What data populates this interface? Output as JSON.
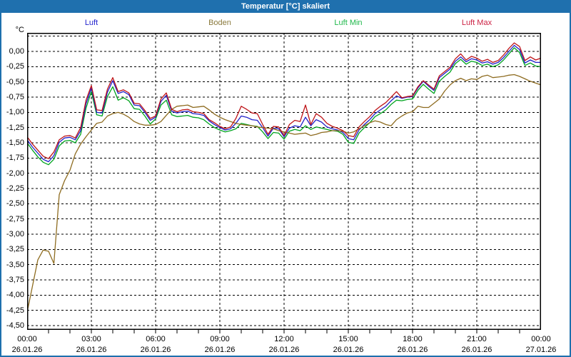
{
  "window": {
    "title": "Temperatur [°C] skaliert",
    "titlebar_color": "#1F70AE",
    "frame_color": "#1E70AD",
    "background_color": "#FFFFFF"
  },
  "legend": [
    {
      "label": "Luft",
      "color": "#2222CC"
    },
    {
      "label": "Boden",
      "color": "#8A7A3D"
    },
    {
      "label": "Luft Min",
      "color": "#1FB84B"
    },
    {
      "label": "Luft Max",
      "color": "#CC2244"
    }
  ],
  "chart_data": {
    "type": "line",
    "title": "Temperatur [°C] skaliert",
    "xlabel": "",
    "ylabel": "°C",
    "ylim": [
      -4.57,
      0.305
    ],
    "grid": "dashed",
    "legend_position": "top",
    "x_step_hours": 0.25,
    "x_range_hours": [
      0,
      24
    ],
    "yticks": [
      {
        "v": 0.25,
        "label": ""
      },
      {
        "v": 0.0,
        "label": "0,00"
      },
      {
        "v": -0.25,
        "label": "-0,25"
      },
      {
        "v": -0.5,
        "label": "-0,50"
      },
      {
        "v": -0.75,
        "label": "-0,75"
      },
      {
        "v": -1.0,
        "label": "-1,00"
      },
      {
        "v": -1.25,
        "label": "-1,25"
      },
      {
        "v": -1.5,
        "label": "-1,50"
      },
      {
        "v": -1.75,
        "label": "-1,75"
      },
      {
        "v": -2.0,
        "label": "-2,00"
      },
      {
        "v": -2.25,
        "label": "-2,25"
      },
      {
        "v": -2.5,
        "label": "-2,50"
      },
      {
        "v": -2.75,
        "label": "-2,75"
      },
      {
        "v": -3.0,
        "label": "-3,00"
      },
      {
        "v": -3.25,
        "label": "-3,25"
      },
      {
        "v": -3.5,
        "label": "-3,50"
      },
      {
        "v": -3.75,
        "label": "-3,75"
      },
      {
        "v": -4.0,
        "label": "-4,00"
      },
      {
        "v": -4.25,
        "label": "-4,25"
      },
      {
        "v": -4.5,
        "label": "-4,50"
      }
    ],
    "xticks": [
      {
        "hour": 0,
        "time": "00:00",
        "date": "26.01.26"
      },
      {
        "hour": 3,
        "time": "03:00",
        "date": "26.01.26"
      },
      {
        "hour": 6,
        "time": "06:00",
        "date": "26.01.26"
      },
      {
        "hour": 9,
        "time": "09:00",
        "date": "26.01.26"
      },
      {
        "hour": 12,
        "time": "12:00",
        "date": "26.01.26"
      },
      {
        "hour": 15,
        "time": "15:00",
        "date": "26.01.26"
      },
      {
        "hour": 18,
        "time": "18:00",
        "date": "26.01.26"
      },
      {
        "hour": 21,
        "time": "21:00",
        "date": "26.01.26"
      },
      {
        "hour": 24,
        "time": "00:00",
        "date": "27.01.26"
      }
    ],
    "series": [
      {
        "name": "Luft Min",
        "color": "#00A41E",
        "values": [
          -1.5,
          -1.62,
          -1.73,
          -1.82,
          -1.86,
          -1.77,
          -1.55,
          -1.47,
          -1.46,
          -1.5,
          -1.36,
          -0.93,
          -0.66,
          -1.04,
          -1.06,
          -0.74,
          -0.58,
          -0.8,
          -0.76,
          -0.81,
          -0.94,
          -0.95,
          -1.06,
          -1.19,
          -1.11,
          -0.88,
          -0.8,
          -1.04,
          -1.07,
          -1.06,
          -1.05,
          -1.08,
          -1.09,
          -1.12,
          -1.19,
          -1.25,
          -1.29,
          -1.32,
          -1.3,
          -1.27,
          -1.18,
          -1.2,
          -1.22,
          -1.23,
          -1.32,
          -1.43,
          -1.33,
          -1.34,
          -1.44,
          -1.31,
          -1.28,
          -1.3,
          -1.22,
          -1.28,
          -1.24,
          -1.26,
          -1.28,
          -1.3,
          -1.31,
          -1.36,
          -1.49,
          -1.51,
          -1.34,
          -1.25,
          -1.17,
          -1.07,
          -1.02,
          -0.96,
          -0.87,
          -0.8,
          -0.81,
          -0.79,
          -0.78,
          -0.64,
          -0.54,
          -0.62,
          -0.69,
          -0.49,
          -0.41,
          -0.34,
          -0.2,
          -0.13,
          -0.21,
          -0.16,
          -0.18,
          -0.23,
          -0.21,
          -0.25,
          -0.22,
          -0.14,
          -0.04,
          0.06,
          -0.02,
          -0.23,
          -0.19,
          -0.24,
          -0.25
        ]
      },
      {
        "name": "Luft",
        "color": "#2020C8",
        "values": [
          -1.45,
          -1.57,
          -1.67,
          -1.77,
          -1.81,
          -1.71,
          -1.49,
          -1.42,
          -1.41,
          -1.45,
          -1.3,
          -0.86,
          -0.6,
          -1.0,
          -1.01,
          -0.67,
          -0.48,
          -0.69,
          -0.66,
          -0.71,
          -0.88,
          -0.89,
          -1.0,
          -1.13,
          -1.08,
          -0.82,
          -0.72,
          -0.98,
          -1.01,
          -0.99,
          -0.98,
          -1.02,
          -1.03,
          -1.05,
          -1.14,
          -1.2,
          -1.25,
          -1.29,
          -1.27,
          -1.18,
          -1.06,
          -1.08,
          -1.12,
          -1.13,
          -1.25,
          -1.39,
          -1.26,
          -1.27,
          -1.4,
          -1.26,
          -1.22,
          -1.24,
          -1.08,
          -1.22,
          -1.12,
          -1.16,
          -1.24,
          -1.27,
          -1.29,
          -1.33,
          -1.43,
          -1.45,
          -1.29,
          -1.2,
          -1.12,
          -1.02,
          -0.96,
          -0.9,
          -0.81,
          -0.73,
          -0.77,
          -0.75,
          -0.74,
          -0.6,
          -0.49,
          -0.57,
          -0.64,
          -0.43,
          -0.36,
          -0.29,
          -0.16,
          -0.09,
          -0.17,
          -0.12,
          -0.14,
          -0.19,
          -0.17,
          -0.21,
          -0.18,
          -0.1,
          0.0,
          0.1,
          0.03,
          -0.19,
          -0.14,
          -0.18,
          -0.18
        ]
      },
      {
        "name": "Boden",
        "color": "#8E6C20",
        "values": [
          -4.28,
          -3.85,
          -3.42,
          -3.26,
          -3.28,
          -3.48,
          -2.35,
          -2.12,
          -1.95,
          -1.68,
          -1.52,
          -1.4,
          -1.29,
          -1.18,
          -1.16,
          -1.06,
          -1.02,
          -1.0,
          -1.03,
          -1.08,
          -1.15,
          -1.19,
          -1.21,
          -1.21,
          -1.2,
          -1.15,
          -1.05,
          -0.95,
          -0.9,
          -0.89,
          -0.88,
          -0.92,
          -0.91,
          -0.9,
          -0.96,
          -1.03,
          -1.08,
          -1.12,
          -1.15,
          -1.18,
          -1.2,
          -1.21,
          -1.22,
          -1.24,
          -1.25,
          -1.26,
          -1.27,
          -1.3,
          -1.32,
          -1.34,
          -1.36,
          -1.35,
          -1.34,
          -1.38,
          -1.36,
          -1.33,
          -1.32,
          -1.3,
          -1.3,
          -1.31,
          -1.34,
          -1.32,
          -1.27,
          -1.22,
          -1.17,
          -1.14,
          -1.16,
          -1.2,
          -1.22,
          -1.12,
          -1.06,
          -1.01,
          -0.99,
          -0.9,
          -0.92,
          -0.92,
          -0.85,
          -0.78,
          -0.65,
          -0.55,
          -0.48,
          -0.44,
          -0.48,
          -0.45,
          -0.46,
          -0.41,
          -0.39,
          -0.43,
          -0.42,
          -0.41,
          -0.39,
          -0.38,
          -0.41,
          -0.45,
          -0.49,
          -0.52,
          -0.55
        ]
      },
      {
        "name": "Luft Max",
        "color": "#BE1418",
        "values": [
          -1.4,
          -1.52,
          -1.62,
          -1.72,
          -1.76,
          -1.65,
          -1.45,
          -1.39,
          -1.38,
          -1.42,
          -1.25,
          -0.8,
          -0.56,
          -0.96,
          -0.97,
          -0.62,
          -0.43,
          -0.66,
          -0.63,
          -0.68,
          -0.85,
          -0.86,
          -0.97,
          -1.1,
          -1.06,
          -0.78,
          -0.68,
          -0.95,
          -0.99,
          -0.96,
          -0.95,
          -0.99,
          -1.0,
          -1.02,
          -1.12,
          -1.17,
          -1.23,
          -1.27,
          -1.24,
          -1.1,
          -0.9,
          -0.95,
          -1.01,
          -1.02,
          -1.2,
          -1.36,
          -1.23,
          -1.24,
          -1.38,
          -1.2,
          -1.13,
          -1.15,
          -0.88,
          -1.2,
          -1.02,
          -1.08,
          -1.18,
          -1.23,
          -1.26,
          -1.3,
          -1.38,
          -1.4,
          -1.24,
          -1.15,
          -1.07,
          -0.97,
          -0.9,
          -0.84,
          -0.75,
          -0.66,
          -0.76,
          -0.74,
          -0.73,
          -0.58,
          -0.48,
          -0.55,
          -0.62,
          -0.4,
          -0.33,
          -0.26,
          -0.12,
          -0.04,
          -0.14,
          -0.08,
          -0.11,
          -0.16,
          -0.13,
          -0.18,
          -0.15,
          -0.06,
          0.05,
          0.14,
          0.08,
          -0.15,
          -0.09,
          -0.14,
          -0.11
        ]
      }
    ]
  }
}
